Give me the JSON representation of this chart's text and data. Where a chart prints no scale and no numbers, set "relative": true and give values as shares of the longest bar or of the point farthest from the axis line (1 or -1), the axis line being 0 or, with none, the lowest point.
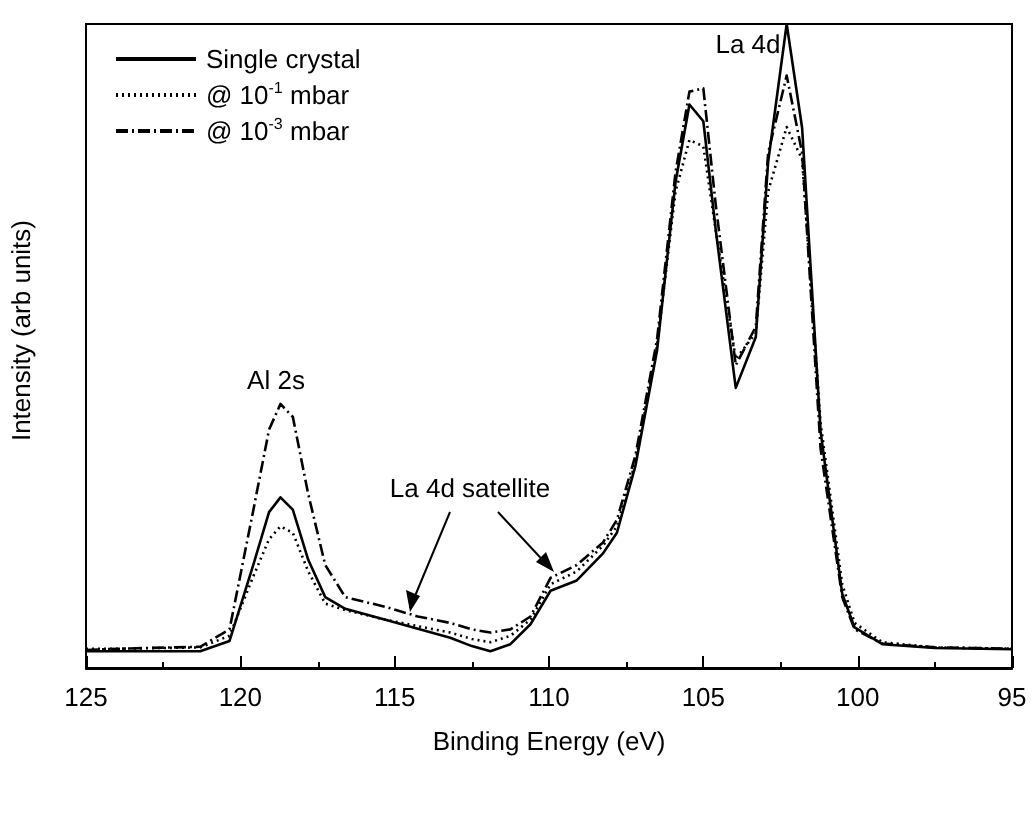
{
  "chart_data": {
    "type": "line",
    "relative": true,
    "xlabel": "Binding Energy (eV)",
    "ylabel": "Intensity (arb units)",
    "xlim": [
      125,
      95
    ],
    "xticks": [
      125,
      120,
      115,
      110,
      105,
      100,
      95
    ],
    "legend": "top left",
    "grid": false,
    "marker": "none",
    "x": [
      125,
      123.9,
      121.3,
      120.35,
      119.6,
      119.07,
      118.7,
      118.3,
      117.8,
      117.25,
      116.6,
      115.3,
      114.25,
      113.2,
      112.5,
      111.9,
      111.25,
      110.6,
      109.95,
      109.1,
      108.25,
      107.8,
      107.2,
      106.5,
      105.9,
      105.45,
      105.0,
      104.6,
      103.95,
      103.3,
      102.9,
      102.3,
      101.8,
      101.2,
      100.5,
      100.1,
      99.2,
      97.5,
      95
    ],
    "series": [
      {
        "name": "Single crystal",
        "color": "#000000",
        "line_style": "solid",
        "values": [
          0.026,
          0.026,
          0.026,
          0.042,
          0.157,
          0.242,
          0.265,
          0.246,
          0.168,
          0.11,
          0.092,
          0.075,
          0.061,
          0.047,
          0.034,
          0.026,
          0.037,
          0.068,
          0.12,
          0.136,
          0.178,
          0.21,
          0.314,
          0.493,
          0.755,
          0.875,
          0.849,
          0.681,
          0.435,
          0.514,
          0.786,
          1,
          0.839,
          0.367,
          0.115,
          0.063,
          0.037,
          0.031,
          0.029
        ]
      },
      {
        "name": "@ 10$^{-1}$ mbar",
        "color": "#000000",
        "line_style": "dotted",
        "values": [
          0.03,
          0.03,
          0.032,
          0.05,
          0.14,
          0.2,
          0.22,
          0.21,
          0.15,
          0.1,
          0.09,
          0.075,
          0.065,
          0.055,
          0.045,
          0.04,
          0.05,
          0.075,
          0.13,
          0.15,
          0.19,
          0.22,
          0.32,
          0.5,
          0.74,
          0.82,
          0.81,
          0.68,
          0.48,
          0.52,
          0.74,
          0.84,
          0.79,
          0.38,
          0.13,
          0.07,
          0.04,
          0.032,
          0.03
        ]
      },
      {
        "name": "@ 10$^{-3}$ mbar",
        "color": "#000000",
        "line_style": "dashdot",
        "values": [
          0.028,
          0.03,
          0.033,
          0.06,
          0.24,
          0.37,
          0.41,
          0.39,
          0.27,
          0.16,
          0.11,
          0.095,
          0.08,
          0.07,
          0.06,
          0.055,
          0.06,
          0.08,
          0.14,
          0.16,
          0.195,
          0.23,
          0.33,
          0.51,
          0.77,
          0.895,
          0.9,
          0.72,
          0.47,
          0.53,
          0.8,
          0.92,
          0.8,
          0.34,
          0.11,
          0.06,
          0.038,
          0.032,
          0.03
        ]
      }
    ],
    "annotations": [
      "Al 2s",
      "La 4d satellite",
      "La 4d"
    ]
  }
}
